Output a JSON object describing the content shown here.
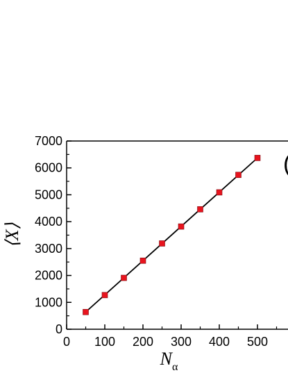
{
  "chart_data": {
    "type": "scatter",
    "title": "",
    "xlabel": "N",
    "xlabel_subscript": "α",
    "ylabel": "⟨X⟩",
    "panel_label": "(",
    "xlim": [
      0,
      580
    ],
    "ylim": [
      0,
      7000
    ],
    "x_ticks": [
      0,
      100,
      200,
      300,
      400,
      500
    ],
    "y_ticks": [
      0,
      1000,
      2000,
      3000,
      4000,
      5000,
      6000,
      7000
    ],
    "grid": false,
    "legend": "none",
    "series": [
      {
        "marker": "square",
        "color": "#e8141e",
        "x": [
          50,
          100,
          150,
          200,
          250,
          300,
          350,
          400,
          450,
          500
        ],
        "y": [
          640,
          1270,
          1910,
          2550,
          3190,
          3820,
          4460,
          5090,
          5740,
          6370
        ]
      }
    ],
    "fit_line": {
      "color": "#000000",
      "x": [
        50,
        500
      ],
      "y": [
        640,
        6370
      ]
    }
  }
}
